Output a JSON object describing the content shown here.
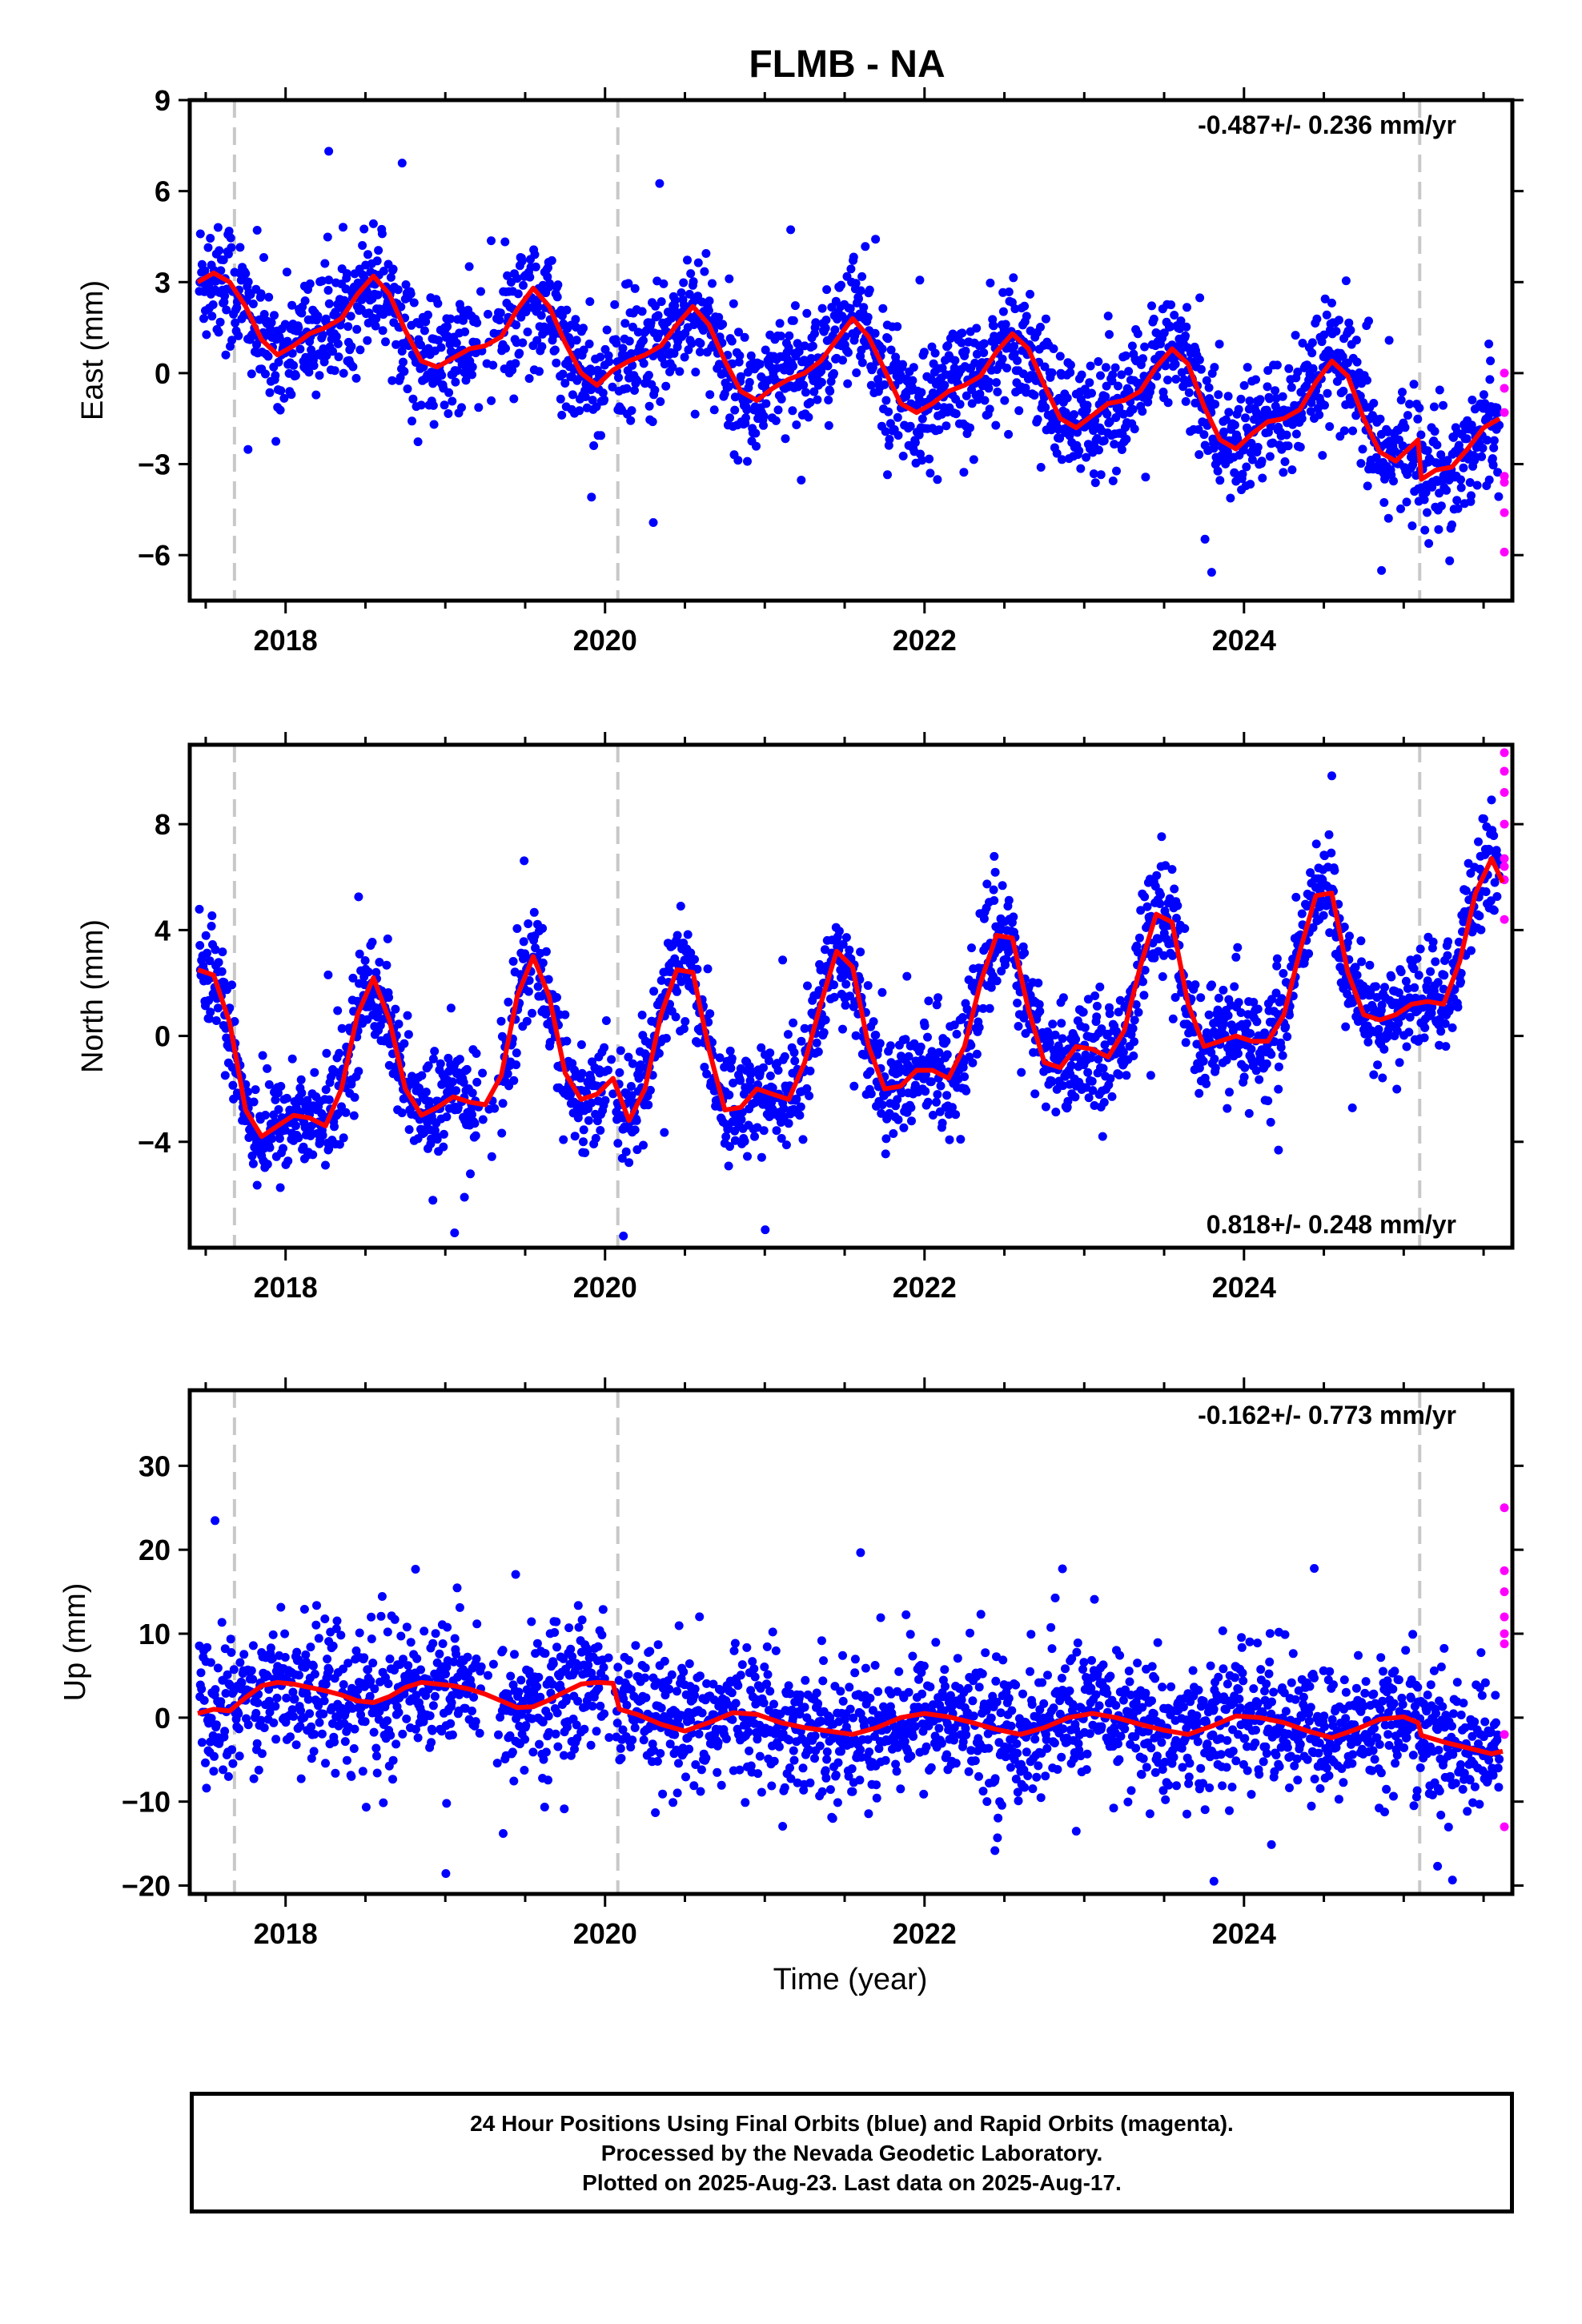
{
  "title": "FLMB - NA",
  "xlabel": "Time (year)",
  "footer": {
    "line1": "24 Hour Positions Using Final Orbits (blue) and Rapid Orbits (magenta).",
    "line2": "Processed by the Nevada Geodetic Laboratory.",
    "line3": "Plotted on 2025-Aug-23. Last data on 2025-Aug-17."
  },
  "colors": {
    "final": "#0000ff",
    "rapid": "#ff00ff",
    "model": "#ff0000",
    "break_line": "#c8c8c8"
  },
  "chart_data": [
    {
      "type": "scatter",
      "ylabel": "East (mm)",
      "rate_text": "-0.487+/- 0.236 mm/yr",
      "rate_position": "top-right",
      "xlim": [
        2017.4,
        2025.68
      ],
      "ylim": [
        -7.5,
        9
      ],
      "yticks": [
        9,
        6,
        3,
        0,
        -3,
        -6
      ],
      "ytick_labels": [
        "9",
        "6",
        "3",
        "0",
        "−3",
        "−6"
      ],
      "xticks": [
        2018,
        2020,
        2022,
        2024
      ],
      "breaks": [
        2017.68,
        2020.08,
        2025.1
      ],
      "model": {
        "x": [
          2017.45,
          2017.55,
          2017.65,
          2017.75,
          2017.85,
          2017.95,
          2018.05,
          2018.15,
          2018.25,
          2018.35,
          2018.45,
          2018.55,
          2018.65,
          2018.75,
          2018.85,
          2018.95,
          2019.05,
          2019.15,
          2019.25,
          2019.35,
          2019.45,
          2019.55,
          2019.65,
          2019.75,
          2019.85,
          2019.95,
          2020.05,
          2020.15,
          2020.25,
          2020.35,
          2020.45,
          2020.55,
          2020.65,
          2020.75,
          2020.85,
          2020.95,
          2021.05,
          2021.15,
          2021.25,
          2021.35,
          2021.45,
          2021.55,
          2021.65,
          2021.75,
          2021.85,
          2021.95,
          2022.05,
          2022.15,
          2022.25,
          2022.35,
          2022.45,
          2022.55,
          2022.65,
          2022.75,
          2022.85,
          2022.95,
          2023.05,
          2023.15,
          2023.25,
          2023.35,
          2023.45,
          2023.55,
          2023.65,
          2023.75,
          2023.85,
          2023.95,
          2024.05,
          2024.15,
          2024.25,
          2024.35,
          2024.45,
          2024.55,
          2024.65,
          2024.75,
          2024.85,
          2024.95,
          2025.05,
          2025.09,
          2025.11,
          2025.2,
          2025.3,
          2025.4,
          2025.5,
          2025.6
        ],
        "y": [
          3.0,
          3.3,
          3.0,
          2.2,
          1.1,
          0.6,
          0.9,
          1.3,
          1.5,
          1.8,
          2.6,
          3.2,
          2.6,
          1.4,
          0.4,
          0.2,
          0.5,
          0.8,
          0.9,
          1.2,
          2.1,
          2.8,
          2.2,
          1.0,
          0.0,
          -0.4,
          0.1,
          0.4,
          0.6,
          0.9,
          1.6,
          2.2,
          1.6,
          0.4,
          -0.6,
          -0.9,
          -0.5,
          -0.2,
          0.0,
          0.4,
          1.1,
          1.8,
          1.2,
          0.1,
          -1.0,
          -1.3,
          -1.0,
          -0.6,
          -0.4,
          -0.1,
          0.7,
          1.3,
          0.8,
          -0.4,
          -1.5,
          -1.8,
          -1.4,
          -1.0,
          -0.9,
          -0.6,
          0.2,
          0.8,
          0.3,
          -1.1,
          -2.2,
          -2.5,
          -2.0,
          -1.6,
          -1.5,
          -1.2,
          -0.3,
          0.4,
          -0.1,
          -1.5,
          -2.6,
          -2.9,
          -2.4,
          -2.2,
          -3.5,
          -3.2,
          -3.1,
          -2.5,
          -1.8,
          -1.5
        ]
      },
      "rapid": {
        "x": [
          2025.63,
          2025.63,
          2025.63,
          2025.63,
          2025.63,
          2025.63,
          2025.63
        ],
        "y": [
          0.0,
          -0.5,
          -1.3,
          -3.4,
          -3.6,
          -4.6,
          -5.9
        ]
      }
    },
    {
      "type": "scatter",
      "ylabel": "North (mm)",
      "rate_text": "0.818+/- 0.248 mm/yr",
      "rate_position": "bottom-right",
      "xlim": [
        2017.4,
        2025.68
      ],
      "ylim": [
        -8,
        11
      ],
      "yticks": [
        8,
        4,
        0,
        -4
      ],
      "ytick_labels": [
        "8",
        "4",
        "0",
        "−4"
      ],
      "xticks": [
        2018,
        2020,
        2022,
        2024
      ],
      "breaks": [
        2017.68,
        2020.08,
        2025.1
      ],
      "model": {
        "x": [
          2017.45,
          2017.55,
          2017.65,
          2017.75,
          2017.85,
          2017.95,
          2018.05,
          2018.15,
          2018.25,
          2018.35,
          2018.45,
          2018.55,
          2018.65,
          2018.75,
          2018.85,
          2018.95,
          2019.05,
          2019.15,
          2019.25,
          2019.35,
          2019.45,
          2019.55,
          2019.65,
          2019.75,
          2019.85,
          2019.95,
          2020.05,
          2020.15,
          2020.25,
          2020.35,
          2020.45,
          2020.55,
          2020.65,
          2020.75,
          2020.85,
          2020.95,
          2021.05,
          2021.15,
          2021.25,
          2021.35,
          2021.45,
          2021.55,
          2021.65,
          2021.75,
          2021.85,
          2021.95,
          2022.05,
          2022.15,
          2022.25,
          2022.35,
          2022.45,
          2022.55,
          2022.65,
          2022.75,
          2022.85,
          2022.95,
          2023.05,
          2023.15,
          2023.25,
          2023.35,
          2023.45,
          2023.55,
          2023.65,
          2023.75,
          2023.85,
          2023.95,
          2024.05,
          2024.15,
          2024.25,
          2024.35,
          2024.45,
          2024.55,
          2024.65,
          2024.75,
          2024.85,
          2024.95,
          2025.05,
          2025.15,
          2025.25,
          2025.35,
          2025.45,
          2025.55,
          2025.62
        ],
        "y": [
          2.5,
          2.3,
          0.5,
          -2.8,
          -3.8,
          -3.4,
          -3.0,
          -3.1,
          -3.4,
          -2.0,
          0.8,
          2.2,
          0.6,
          -2.0,
          -3.0,
          -2.7,
          -2.3,
          -2.5,
          -2.6,
          -1.5,
          1.5,
          3.0,
          1.5,
          -1.4,
          -2.4,
          -2.2,
          -1.6,
          -3.2,
          -2.0,
          0.8,
          2.5,
          2.4,
          -0.5,
          -2.8,
          -2.7,
          -2.0,
          -2.2,
          -2.4,
          -1.0,
          1.2,
          3.2,
          2.6,
          -0.4,
          -2.0,
          -1.9,
          -1.3,
          -1.3,
          -1.6,
          -0.4,
          2.0,
          3.8,
          3.7,
          1.0,
          -1.0,
          -1.2,
          -0.4,
          -0.5,
          -0.8,
          0.2,
          2.6,
          4.6,
          4.3,
          1.2,
          -0.4,
          -0.2,
          0.0,
          -0.2,
          -0.2,
          0.8,
          3.2,
          5.3,
          5.4,
          2.4,
          0.8,
          0.6,
          0.8,
          1.2,
          1.3,
          1.2,
          2.8,
          5.4,
          6.7,
          5.8
        ]
      },
      "rapid": {
        "x": [
          2025.63,
          2025.63,
          2025.63,
          2025.63,
          2025.63,
          2025.63,
          2025.63,
          2025.63
        ],
        "y": [
          10.7,
          10.0,
          9.2,
          8.0,
          6.7,
          6.4,
          5.9,
          4.4
        ]
      }
    },
    {
      "type": "scatter",
      "ylabel": "Up (mm)",
      "rate_text": "-0.162+/- 0.773 mm/yr",
      "rate_position": "top-right",
      "xlim": [
        2017.4,
        2025.68
      ],
      "ylim": [
        -21,
        39
      ],
      "yticks": [
        30,
        20,
        10,
        0,
        -10,
        -20
      ],
      "ytick_labels": [
        "30",
        "20",
        "10",
        "0",
        "−10",
        "−20"
      ],
      "xticks": [
        2018,
        2020,
        2022,
        2024
      ],
      "breaks": [
        2017.68,
        2020.08,
        2025.1
      ],
      "model": {
        "x": [
          2017.45,
          2017.55,
          2017.65,
          2017.75,
          2017.85,
          2017.95,
          2018.05,
          2018.15,
          2018.25,
          2018.35,
          2018.45,
          2018.55,
          2018.65,
          2018.75,
          2018.85,
          2018.95,
          2019.05,
          2019.15,
          2019.25,
          2019.35,
          2019.45,
          2019.55,
          2019.65,
          2019.75,
          2019.85,
          2019.95,
          2020.05,
          2020.09,
          2020.2,
          2020.35,
          2020.5,
          2020.65,
          2020.8,
          2020.95,
          2021.1,
          2021.25,
          2021.4,
          2021.55,
          2021.7,
          2021.85,
          2022.0,
          2022.15,
          2022.3,
          2022.45,
          2022.6,
          2022.75,
          2022.9,
          2023.05,
          2023.2,
          2023.35,
          2023.5,
          2023.65,
          2023.8,
          2023.95,
          2024.1,
          2024.25,
          2024.4,
          2024.55,
          2024.7,
          2024.85,
          2025.0,
          2025.09,
          2025.11,
          2025.25,
          2025.4,
          2025.55,
          2025.62
        ],
        "y": [
          0.5,
          1.0,
          0.8,
          2.4,
          3.8,
          4.2,
          4.0,
          3.6,
          3.2,
          2.7,
          2.0,
          1.8,
          2.5,
          3.6,
          4.2,
          4.0,
          3.8,
          3.4,
          2.8,
          2.0,
          1.2,
          1.3,
          2.1,
          3.1,
          4.0,
          4.2,
          4.1,
          1.0,
          0.4,
          -0.8,
          -1.6,
          -0.6,
          0.6,
          0.4,
          -0.6,
          -1.2,
          -1.6,
          -2.0,
          -1.2,
          0.0,
          0.5,
          0.1,
          -0.6,
          -1.4,
          -2.0,
          -1.2,
          0.0,
          0.5,
          0.0,
          -0.8,
          -1.5,
          -2.0,
          -1.0,
          0.2,
          0.0,
          -0.6,
          -1.6,
          -2.4,
          -1.4,
          -0.2,
          0.1,
          -0.6,
          -2.1,
          -2.9,
          -3.6,
          -4.3,
          -4.0
        ]
      },
      "rapid": {
        "x": [
          2025.63,
          2025.63,
          2025.63,
          2025.63,
          2025.63,
          2025.63,
          2025.63,
          2025.63
        ],
        "y": [
          25.0,
          17.5,
          15.0,
          12.0,
          10.0,
          8.8,
          -2.0,
          -13.0
        ]
      }
    }
  ]
}
